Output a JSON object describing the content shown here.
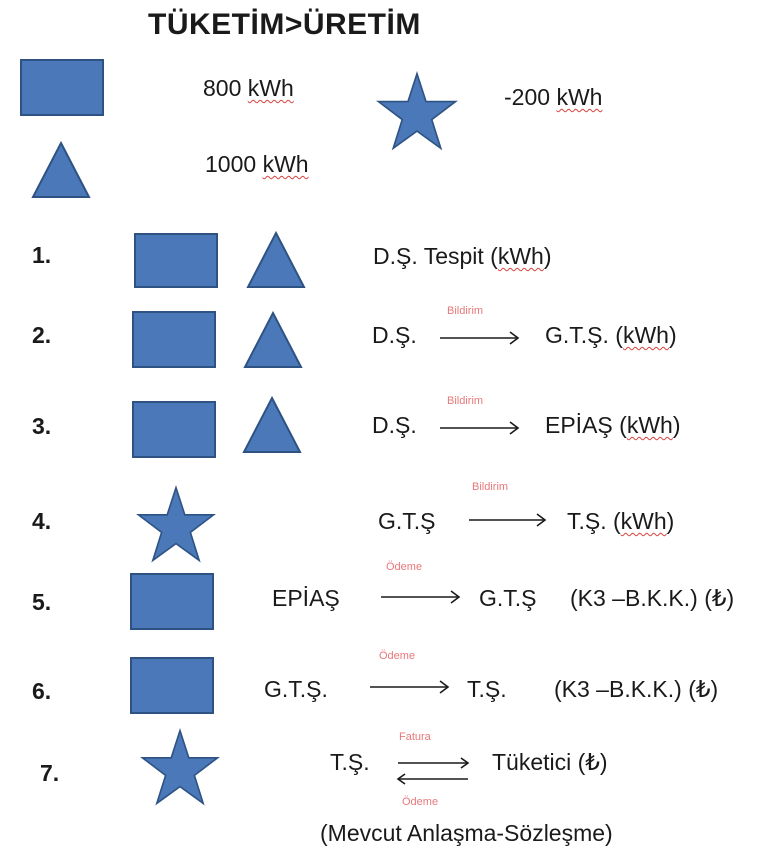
{
  "title": "TÜKETİM>ÜRETİM",
  "legend": {
    "square": {
      "value": "800",
      "unit": "kWh"
    },
    "triangle": {
      "value": "1000",
      "unit": "kWh"
    },
    "star": {
      "value": "-200",
      "unit": "kWh"
    }
  },
  "rows": [
    {
      "num": "1.",
      "text": "D.Ş. Tespit (",
      "unit": "kWh",
      "close": ")"
    },
    {
      "num": "2.",
      "from": "D.Ş.",
      "label": "Bildirim",
      "to": "G.T.Ş. (",
      "unit": "kWh",
      "close": ")"
    },
    {
      "num": "3.",
      "from": "D.Ş.",
      "label": "Bildirim",
      "to": "EPİAŞ (",
      "unit": "kWh",
      "close": ")"
    },
    {
      "num": "4.",
      "from": "G.T.Ş",
      "label": "Bildirim",
      "to": "T.Ş. (",
      "unit": "kWh",
      "close": ")"
    },
    {
      "num": "5.",
      "from": "EPİAŞ",
      "label": "Ödeme",
      "to": "G.T.Ş",
      "extra": "(K3 –B.K.K.) (₺)"
    },
    {
      "num": "6.",
      "from": "G.T.Ş.",
      "label": "Ödeme",
      "to": "T.Ş.",
      "extra": "(K3 –B.K.K.) (₺)"
    },
    {
      "num": "7.",
      "from": "T.Ş.",
      "label_top": "Fatura",
      "to": "Tüketici (₺)",
      "label_bottom": "Ödeme"
    }
  ],
  "footer": "(Mevcut Anlaşma-Sözleşme)",
  "colors": {
    "shape_fill": "#4a78b8",
    "shape_stroke": "#2e5383",
    "small_label": "#e8787a",
    "spell_underline": "#d9413d"
  }
}
